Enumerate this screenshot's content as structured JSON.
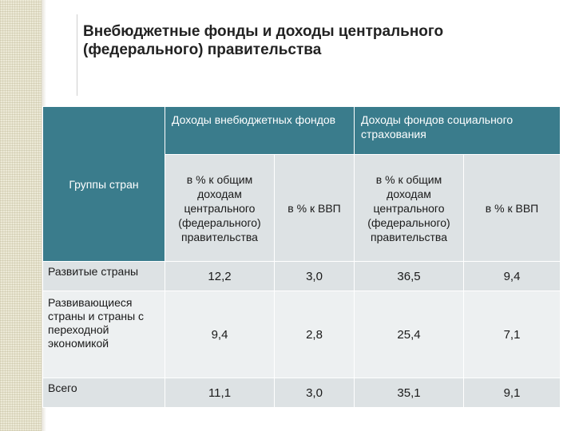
{
  "title": "Внебюджетные фонды и доходы центрального (федерального) правительства",
  "table": {
    "group_header": "Группы стран",
    "col_groups": [
      "Доходы внебюджетных фондов",
      "Доходы фондов социального страхования"
    ],
    "sub_headers": [
      "в % к общим доходам центрального (федерального) правительства",
      "в % к ВВП",
      "в % к общим доходам центрального (федерального) правительства",
      "в % к ВВП"
    ],
    "rows": [
      {
        "label": "Развитые страны",
        "values": [
          "12,2",
          "3,0",
          "36,5",
          "9,4"
        ]
      },
      {
        "label": "Развивающиеся страны и страны с переходной экономикой",
        "values": [
          "9,4",
          "2,8",
          "25,4",
          "7,1"
        ]
      },
      {
        "label": "Всего",
        "values": [
          "11,1",
          "3,0",
          "35,1",
          "9,1"
        ]
      }
    ]
  },
  "colors": {
    "header_teal": "#3a7c8c",
    "cell_light": "#dde2e4",
    "cell_lighter": "#edf0f1",
    "stripe": "#ece9d6"
  }
}
